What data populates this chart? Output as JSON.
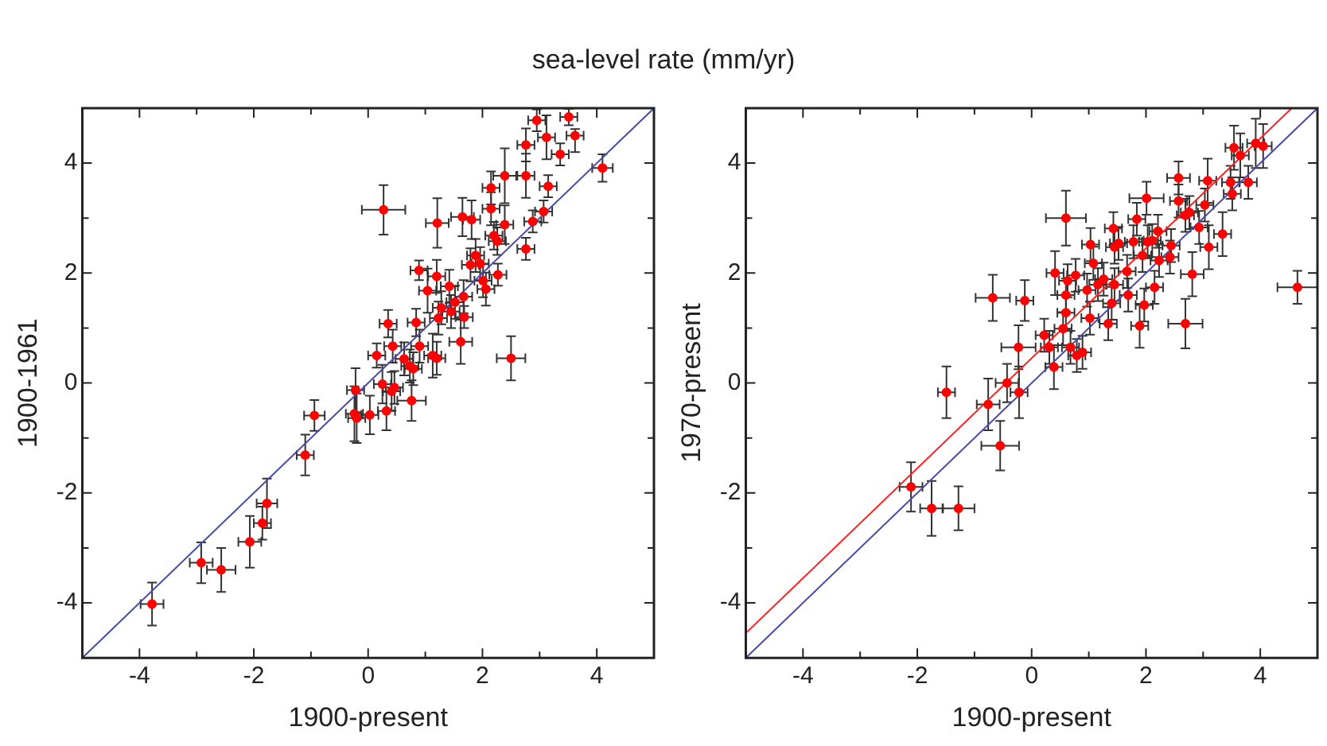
{
  "chart_data": [
    {
      "type": "scatter",
      "title": "sea-level rate (mm/yr)",
      "xlabel": "1900-present",
      "ylabel": "1900-1961",
      "xlim": [
        -5,
        5
      ],
      "ylim": [
        -5,
        5
      ],
      "xticks": [
        -4,
        {
          "value": -3,
          "label": null
        },
        -2,
        {
          "value": -1,
          "label": null
        },
        0,
        {
          "value": 1,
          "label": null
        },
        2,
        {
          "value": 3,
          "label": null
        },
        4
      ],
      "yticks": [
        -4,
        {
          "value": -3,
          "label": null
        },
        -2,
        {
          "value": -1,
          "label": null
        },
        0,
        {
          "value": 1,
          "label": null
        },
        2,
        {
          "value": 3,
          "label": null
        },
        4
      ],
      "series": [
        {
          "type": "line",
          "color": "#4a4aa8",
          "x": [
            -5,
            5
          ],
          "values": [
            -5,
            5
          ]
        },
        {
          "color": "#ff0000",
          "marker": "circle",
          "x": [
            -3.78,
            -2.92,
            -2.57,
            -2.07,
            -1.85,
            -1.77,
            -1.1,
            -0.94,
            -0.22,
            -0.24,
            -0.2,
            0.03,
            0.25,
            0.32,
            0.41,
            0.46,
            0.76,
            0.15,
            0.35,
            0.43,
            0.63,
            0.73,
            0.79,
            0.9,
            0.84,
            0.89,
            1.04,
            1.13,
            1.2,
            1.2,
            1.23,
            1.28,
            1.42,
            1.45,
            1.52,
            1.62,
            1.68,
            1.67,
            1.79,
            1.88,
            1.96,
            2.01,
            2.06,
            2.27,
            2.2,
            2.26,
            2.39,
            2.15,
            2.15,
            2.39,
            1.65,
            1.81,
            1.21,
            0.27,
            2.5,
            2.76,
            2.88,
            3.07,
            2.76,
            2.76,
            2.95,
            3.12,
            3.36,
            3.15,
            3.51,
            3.62,
            4.1
          ],
          "values": [
            -4.02,
            -3.27,
            -3.4,
            -2.89,
            -2.55,
            -2.19,
            -1.31,
            -0.59,
            -0.13,
            -0.56,
            -0.64,
            -0.58,
            -0.02,
            -0.51,
            -0.15,
            -0.08,
            -0.32,
            0.5,
            1.08,
            0.67,
            0.44,
            0.31,
            0.26,
            0.67,
            1.1,
            2.05,
            1.68,
            0.5,
            0.45,
            1.94,
            1.18,
            1.37,
            1.76,
            1.3,
            1.47,
            0.75,
            1.2,
            1.57,
            2.15,
            2.32,
            2.17,
            1.86,
            1.71,
            1.97,
            2.68,
            2.58,
            2.88,
            3.17,
            3.55,
            3.77,
            3.02,
            2.97,
            2.91,
            3.15,
            0.45,
            2.44,
            2.94,
            3.12,
            3.77,
            4.33,
            4.78,
            4.47,
            4.16,
            3.58,
            4.84,
            4.5,
            3.91
          ],
          "errors": [
            0.39,
            0.37,
            0.4,
            0.47,
            0.3,
            0.45,
            0.37,
            0.28,
            0.4,
            0.5,
            0.45,
            0.35,
            0.35,
            0.35,
            0.35,
            0.3,
            0.37,
            0.22,
            0.25,
            0.3,
            0.3,
            0.3,
            0.3,
            0.3,
            0.25,
            0.18,
            0.4,
            0.4,
            0.3,
            0.3,
            0.3,
            0.3,
            0.3,
            0.3,
            0.3,
            0.4,
            0.2,
            0.3,
            0.3,
            0.3,
            0.3,
            0.3,
            0.3,
            0.2,
            0.25,
            0.25,
            0.35,
            0.3,
            0.3,
            0.5,
            0.35,
            0.35,
            0.45,
            0.45,
            0.4,
            0.2,
            0.2,
            0.2,
            0.4,
            0.3,
            0.2,
            0.4,
            0.2,
            0.2,
            0.15,
            [
              4.2,
              4.62
            ],
            0.25
          ],
          "xerrors": [
            0.2,
            0.2,
            0.25,
            0.2,
            0.15,
            0.18,
            0.15,
            0.18,
            0.15,
            0.15,
            0.15,
            0.15,
            0.15,
            0.15,
            0.15,
            0.15,
            0.25,
            0.15,
            0.15,
            0.15,
            0.15,
            0.15,
            0.15,
            0.15,
            0.15,
            0.15,
            0.15,
            0.15,
            0.15,
            0.15,
            0.15,
            0.15,
            0.15,
            0.15,
            0.15,
            0.2,
            0.15,
            0.15,
            0.15,
            0.15,
            0.15,
            0.15,
            0.15,
            0.15,
            0.15,
            0.15,
            0.15,
            0.15,
            0.15,
            0.2,
            0.2,
            0.15,
            0.2,
            0.38,
            0.25,
            0.15,
            0.15,
            0.15,
            0.15,
            0.15,
            0.15,
            0.15,
            0.15,
            0.15,
            0.15,
            0.15,
            0.18
          ]
        }
      ]
    },
    {
      "type": "scatter",
      "xlabel": "1900-present",
      "ylabel": "1970-present",
      "xlim": [
        -5,
        5
      ],
      "ylim": [
        -5,
        5
      ],
      "xticks": [
        -4,
        {
          "value": -3,
          "label": null
        },
        -2,
        {
          "value": -1,
          "label": null
        },
        0,
        {
          "value": 1,
          "label": null
        },
        2,
        {
          "value": 3,
          "label": null
        },
        4
      ],
      "yticks": [
        -4,
        {
          "value": -3,
          "label": null
        },
        -2,
        {
          "value": -1,
          "label": null
        },
        0,
        {
          "value": 1,
          "label": null
        },
        2,
        {
          "value": 3,
          "label": null
        },
        4
      ],
      "series": [
        {
          "type": "line",
          "color": "#4a4aa8",
          "x": [
            -5,
            5
          ],
          "values": [
            -5,
            5
          ]
        },
        {
          "type": "line",
          "color": "#ff2020",
          "x": [
            -5,
            4.55
          ],
          "values": [
            -4.55,
            5
          ]
        },
        {
          "color": "#ff0000",
          "marker": "circle",
          "x": [
            -2.11,
            -1.75,
            -1.28,
            -1.49,
            -0.76,
            -0.55,
            -0.43,
            -0.22,
            -0.68,
            -0.12,
            -0.23,
            0.22,
            0.31,
            0.39,
            0.55,
            0.6,
            0.6,
            0.63,
            0.41,
            0.6,
            0.68,
            0.79,
            0.89,
            0.77,
            0.97,
            1.02,
            1.03,
            1.08,
            1.16,
            1.26,
            1.34,
            1.4,
            1.45,
            1.43,
            1.45,
            1.52,
            1.67,
            1.69,
            1.78,
            1.84,
            1.89,
            1.97,
            2.01,
            1.94,
            2.03,
            2.11,
            2.15,
            2.21,
            2.23,
            2.42,
            2.44,
            2.57,
            2.57,
            2.69,
            2.69,
            2.76,
            2.81,
            2.93,
            3.03,
            3.08,
            3.1,
            3.34,
            3.48,
            3.51,
            3.54,
            3.65,
            3.79,
            3.92,
            4.05,
            4.65
          ],
          "values": [
            -1.89,
            -2.28,
            -2.28,
            -0.17,
            -0.39,
            -1.14,
            0.0,
            -0.17,
            1.55,
            1.5,
            0.65,
            0.87,
            0.65,
            0.29,
            0.99,
            1.28,
            1.6,
            1.86,
            2.0,
            3.0,
            0.65,
            0.5,
            0.56,
            1.96,
            1.69,
            1.18,
            2.52,
            2.18,
            1.79,
            1.89,
            1.08,
            1.45,
            1.79,
            2.81,
            2.47,
            2.54,
            2.03,
            1.6,
            2.57,
            2.98,
            1.04,
            1.42,
            3.36,
            2.32,
            2.57,
            2.59,
            1.74,
            2.76,
            2.23,
            2.29,
            2.5,
            3.73,
            3.31,
            1.08,
            3.05,
            3.1,
            1.98,
            2.83,
            3.24,
            3.68,
            2.47,
            2.71,
            3.65,
            3.44,
            4.28,
            4.14,
            3.65,
            4.36,
            4.31,
            1.74
          ],
          "errors": [
            0.45,
            0.5,
            0.4,
            0.47,
            0.47,
            0.45,
            0.35,
            0.47,
            0.42,
            0.37,
            0.4,
            0.3,
            0.3,
            0.4,
            0.3,
            0.3,
            0.3,
            0.3,
            0.4,
            0.5,
            0.3,
            0.3,
            0.3,
            0.3,
            0.3,
            0.3,
            0.3,
            0.3,
            0.3,
            0.3,
            0.3,
            0.3,
            0.3,
            0.3,
            0.3,
            0.3,
            0.3,
            0.3,
            0.3,
            0.3,
            0.4,
            0.3,
            0.3,
            0.3,
            0.3,
            0.3,
            0.3,
            0.3,
            0.3,
            0.3,
            0.3,
            0.3,
            0.3,
            0.45,
            0.3,
            0.3,
            0.4,
            0.3,
            0.3,
            0.4,
            0.4,
            0.4,
            0.3,
            0.3,
            0.4,
            0.4,
            0.3,
            0.45,
            0.4,
            0.3
          ],
          "xerrors": [
            0.2,
            0.2,
            0.28,
            0.15,
            0.2,
            0.33,
            0.2,
            0.15,
            0.3,
            0.15,
            0.3,
            0.15,
            0.15,
            0.15,
            0.15,
            0.15,
            0.15,
            0.15,
            0.15,
            0.35,
            0.15,
            0.15,
            0.15,
            0.15,
            0.15,
            0.15,
            0.15,
            0.15,
            0.15,
            0.15,
            0.15,
            0.15,
            0.15,
            0.15,
            0.15,
            0.15,
            0.15,
            0.15,
            0.15,
            0.15,
            0.15,
            0.15,
            0.3,
            0.15,
            0.15,
            0.15,
            0.15,
            0.15,
            0.15,
            0.15,
            0.15,
            0.2,
            0.15,
            0.3,
            0.15,
            0.15,
            0.2,
            0.15,
            0.15,
            0.15,
            0.15,
            0.15,
            0.15,
            0.15,
            0.15,
            0.15,
            0.15,
            0.15,
            0.15,
            0.35
          ]
        }
      ]
    }
  ]
}
